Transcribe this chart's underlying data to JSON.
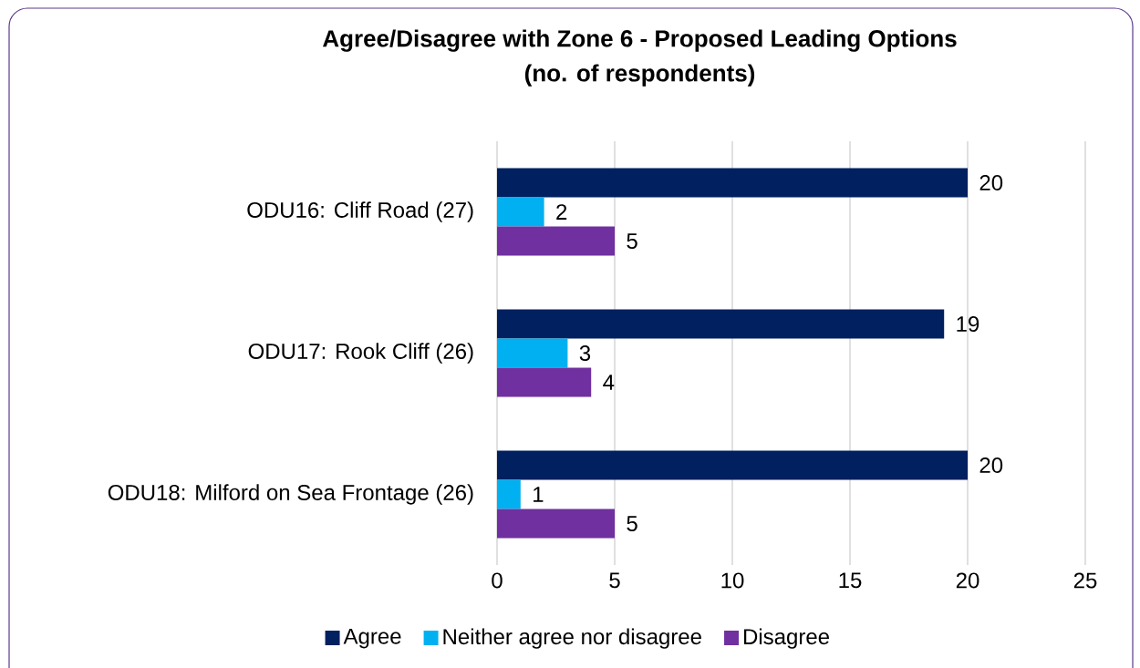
{
  "chart_data": {
    "type": "bar",
    "orientation": "horizontal",
    "title": "Agree/Disagree with Zone 6 - Proposed Leading Options",
    "subtitle": "(no. of respondents)",
    "categories": [
      "ODU16: Cliff Road (27)",
      "ODU17: Rook Cliff (26)",
      "ODU18: Milford on Sea Frontage (26)"
    ],
    "series": [
      {
        "name": "Agree",
        "color": "#002060",
        "values": [
          20,
          19,
          20
        ]
      },
      {
        "name": "Neither agree nor disagree",
        "color": "#00b0f0",
        "values": [
          2,
          3,
          1
        ]
      },
      {
        "name": "Disagree",
        "color": "#7030a0",
        "values": [
          5,
          4,
          5
        ]
      }
    ],
    "xlim": [
      0,
      25
    ],
    "xticks": [
      0,
      5,
      10,
      15,
      20,
      25
    ],
    "grid": "x",
    "legend": "bottom",
    "data_labels": true
  }
}
